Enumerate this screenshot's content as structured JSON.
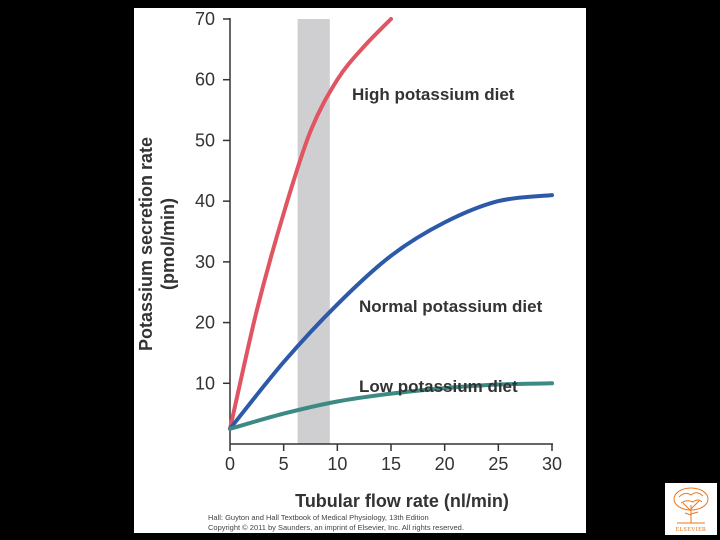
{
  "chart_data": {
    "type": "line",
    "xlabel": "Tubular flow rate (nl/min)",
    "ylabel": "Potassium secretion rate",
    "ylabel_units": "(pmol/min)",
    "xlim": [
      0,
      30
    ],
    "ylim": [
      0,
      70
    ],
    "x_ticks": [
      "0",
      "5",
      "10",
      "15",
      "20",
      "25",
      "30"
    ],
    "y_ticks": [
      "10",
      "20",
      "30",
      "40",
      "50",
      "60",
      "70"
    ],
    "shaded_band": [
      6.3,
      9.3
    ],
    "series": [
      {
        "name": "High potassium diet",
        "color": "#e05562",
        "x": [
          0,
          2.5,
          5,
          7.5,
          10,
          12.5,
          15
        ],
        "y": [
          2.5,
          22,
          38,
          51.5,
          60,
          65.5,
          70
        ]
      },
      {
        "name": "Normal potassium diet",
        "color": "#2c5aa8",
        "x": [
          0,
          5,
          10,
          15,
          20,
          25,
          30
        ],
        "y": [
          2.5,
          13.5,
          23,
          31,
          36.5,
          40,
          41
        ]
      },
      {
        "name": "Low potassium diet",
        "color": "#3d8a84",
        "x": [
          0,
          5,
          10,
          15,
          20,
          25,
          30
        ],
        "y": [
          2.5,
          5,
          7,
          8.3,
          9.2,
          9.8,
          10
        ]
      }
    ]
  },
  "credit": {
    "line1": "Hall: Guyton and Hall Textbook of Medical Physiology, 13th Edition",
    "line2": "Copyright © 2011 by Saunders, an imprint of Elsevier, Inc. All rights reserved."
  },
  "logo": {
    "name": "elsevier-tree-logo",
    "text": "ELSEVIER",
    "color": "#e87722"
  }
}
